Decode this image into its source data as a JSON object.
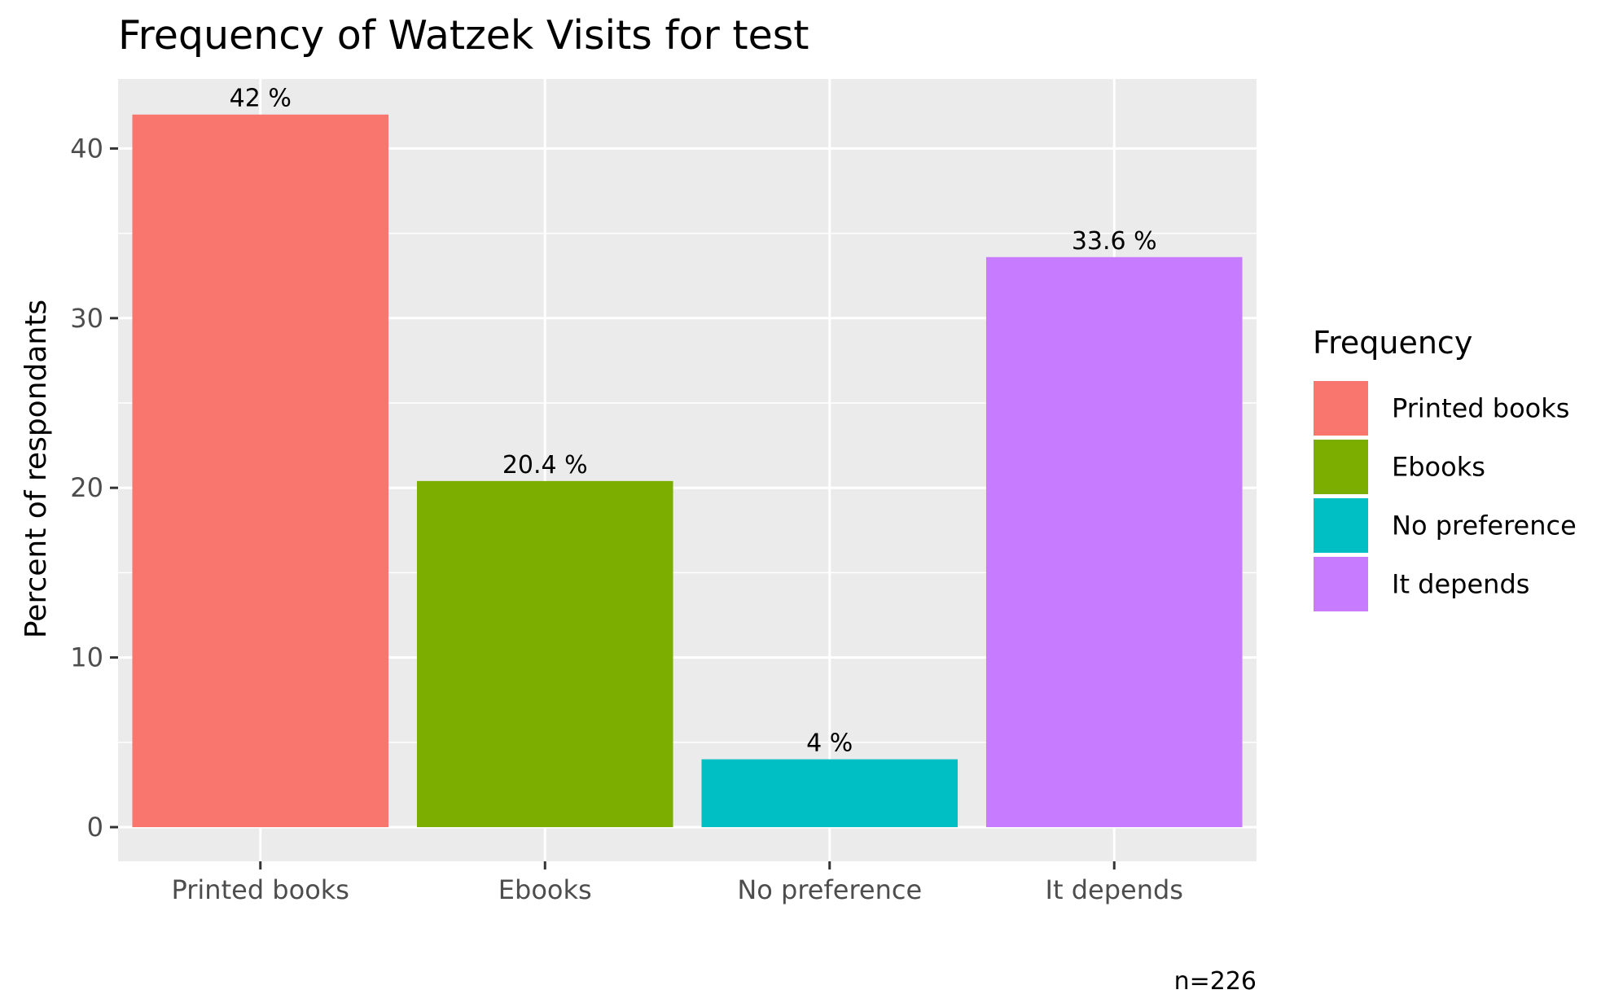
{
  "chart_data": {
    "type": "bar",
    "title": "Frequency of Watzek Visits for test",
    "xlabel": "",
    "ylabel": "Percent of respondants",
    "categories": [
      "Printed books",
      "Ebooks",
      "No preference",
      "It depends"
    ],
    "values": [
      42,
      20.4,
      4,
      33.6
    ],
    "data_labels": [
      "42 %",
      "20.4 %",
      "4 %",
      "33.6 %"
    ],
    "colors": [
      "#F8766D",
      "#7CAE00",
      "#00BFC4",
      "#C77CFF"
    ],
    "ylim": [
      0,
      44
    ],
    "yticks": [
      0,
      10,
      20,
      30,
      40
    ],
    "legend": {
      "title": "Frequency",
      "placement": "right",
      "entries": [
        "Printed books",
        "Ebooks",
        "No preference",
        "It depends"
      ]
    },
    "caption": "n=226",
    "grid": true,
    "panel_background": "#EBEBEB",
    "grid_color": "#FFFFFF"
  }
}
